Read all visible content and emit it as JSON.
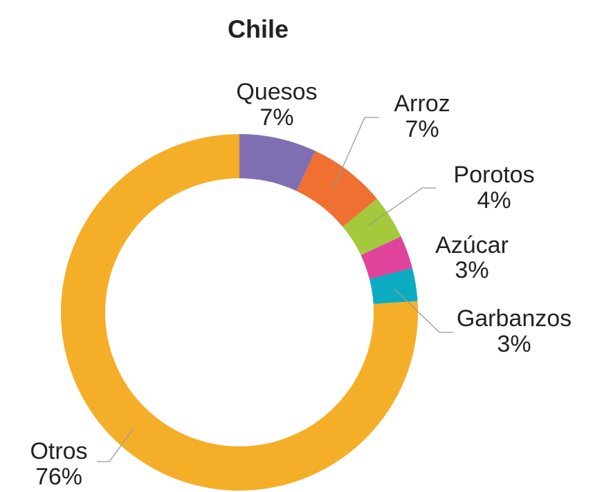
{
  "chart_data": {
    "type": "donut",
    "title": "Chile",
    "categories": [
      "Quesos",
      "Arroz",
      "Porotos",
      "Azúcar",
      "Garbanzos",
      "Otros"
    ],
    "values": [
      7,
      7,
      4,
      3,
      3,
      76
    ],
    "value_labels": [
      "7%",
      "7%",
      "4%",
      "3%",
      "3%",
      "76%"
    ],
    "colors": [
      "#7f6fb2",
      "#ef7030",
      "#a4c93c",
      "#e0449a",
      "#0bacc1",
      "#f5ae27"
    ]
  }
}
